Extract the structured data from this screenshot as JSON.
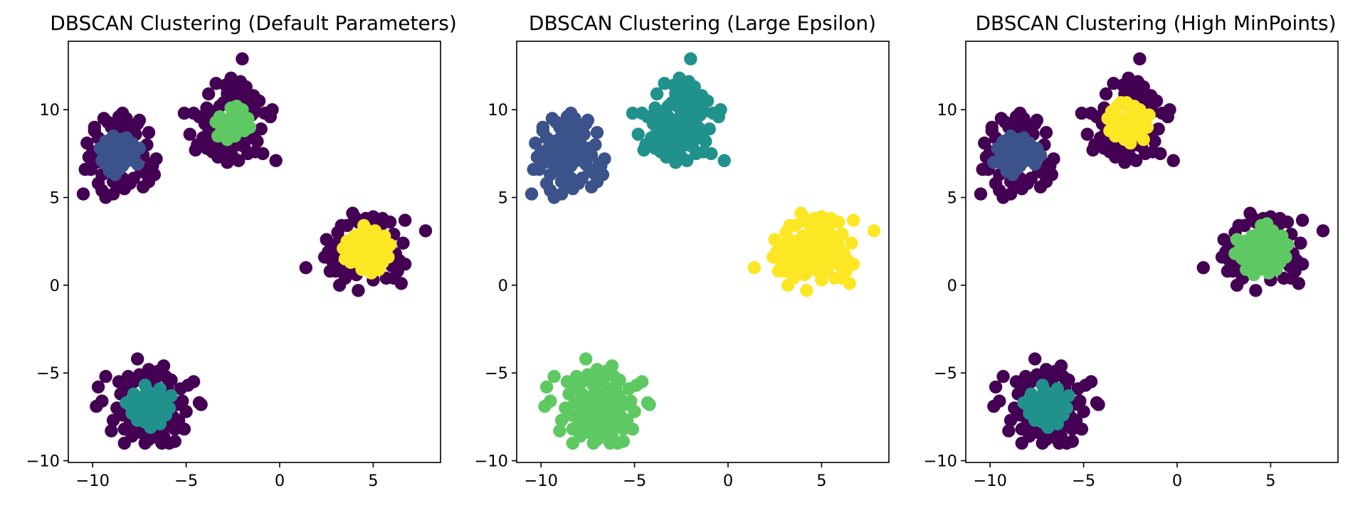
{
  "figure": {
    "background": "#ffffff"
  },
  "palette": {
    "noise": "#440154",
    "c0": "#3b528b",
    "c1": "#21918c",
    "c2": "#5ec962",
    "c3": "#fde725"
  },
  "chart_data": [
    {
      "type": "scatter",
      "title": "DBSCAN Clustering (Default Parameters)",
      "xlabel": "",
      "ylabel": "",
      "xlim": [
        -11.3,
        8.6
      ],
      "ylim": [
        -10.1,
        13.9
      ],
      "xticks": [
        -10,
        -5,
        0,
        5
      ],
      "yticks": [
        -10,
        -5,
        0,
        5,
        10
      ],
      "xtick_labels": [
        "−10",
        "−5",
        "0",
        "5"
      ],
      "ytick_labels": [
        "−10",
        "−5",
        "0",
        "5",
        "10"
      ],
      "grid": false,
      "legend": "none",
      "blob_colors": {
        "A": "c0",
        "B": "c2",
        "C": "c3",
        "D": "c1"
      },
      "clusters": {
        "A": "r1.2",
        "B": "r1.1",
        "C": "r1.4",
        "D": "r1.3"
      }
    },
    {
      "type": "scatter",
      "title": "DBSCAN Clustering (Large Epsilon)",
      "xlabel": "",
      "ylabel": "",
      "xlim": [
        -11.3,
        8.6
      ],
      "ylim": [
        -10.1,
        13.9
      ],
      "xticks": [
        -10,
        -5,
        0,
        5
      ],
      "yticks": [
        -10,
        -5,
        0,
        5,
        10
      ],
      "xtick_labels": [
        "−10",
        "−5",
        "0",
        "5"
      ],
      "ytick_labels": [
        "−10",
        "−5",
        "0",
        "5",
        "10"
      ],
      "grid": false,
      "legend": "none",
      "blob_colors": {
        "A": "c0",
        "B": "c1",
        "C": "c3",
        "D": "c2"
      },
      "clusters": {
        "A": "r99",
        "B": "r99",
        "C": "r99",
        "D": "r99"
      }
    },
    {
      "type": "scatter",
      "title": "DBSCAN Clustering (High MinPoints)",
      "xlabel": "",
      "ylabel": "",
      "xlim": [
        -11.3,
        8.6
      ],
      "ylim": [
        -10.1,
        13.9
      ],
      "xticks": [
        -10,
        -5,
        0,
        5
      ],
      "yticks": [
        -10,
        -5,
        0,
        5,
        10
      ],
      "xtick_labels": [
        "−10",
        "−5",
        "0",
        "5"
      ],
      "ytick_labels": [
        "−10",
        "−5",
        "0",
        "5",
        "10"
      ],
      "grid": false,
      "legend": "none",
      "blob_colors": {
        "A": "c0",
        "B": "c3",
        "C": "c2",
        "D": "c1"
      },
      "clusters": {
        "A": "r1.3",
        "B": "r1.3",
        "C": "r1.6",
        "D": "r1.3"
      }
    }
  ],
  "points": {
    "A": [
      [
        -8.8,
        7.6
      ],
      [
        -8.6,
        7.9
      ],
      [
        -9.1,
        7.3
      ],
      [
        -8.4,
        7.2
      ],
      [
        -8.9,
        8.1
      ],
      [
        -8.2,
        7.7
      ],
      [
        -9.2,
        7.9
      ],
      [
        -8.7,
        7.0
      ],
      [
        -8.5,
        8.3
      ],
      [
        -9.0,
        6.8
      ],
      [
        -8.3,
        8.0
      ],
      [
        -9.4,
        7.5
      ],
      [
        -8.1,
        7.1
      ],
      [
        -8.9,
        8.5
      ],
      [
        -8.6,
        6.6
      ],
      [
        -9.3,
        8.2
      ],
      [
        -8.0,
        7.6
      ],
      [
        -9.5,
        7.1
      ],
      [
        -8.4,
        6.8
      ],
      [
        -8.7,
        8.7
      ],
      [
        -9.1,
        6.5
      ],
      [
        -8.2,
        8.4
      ],
      [
        -9.6,
        7.8
      ],
      [
        -7.8,
        7.3
      ],
      [
        -8.8,
        6.3
      ],
      [
        -9.3,
        6.9
      ],
      [
        -7.9,
        8.1
      ],
      [
        -8.5,
        9.0
      ],
      [
        -9.7,
        8.4
      ],
      [
        -7.6,
        6.9
      ],
      [
        -8.1,
        9.1
      ],
      [
        -9.8,
        7.0
      ],
      [
        -7.5,
        7.8
      ],
      [
        -9.0,
        9.0
      ],
      [
        -8.4,
        6.1
      ],
      [
        -7.7,
        8.6
      ],
      [
        -10.0,
        7.6
      ],
      [
        -9.5,
        6.3
      ],
      [
        -7.3,
        7.4
      ],
      [
        -8.9,
        5.9
      ],
      [
        -8.6,
        9.6
      ],
      [
        -10.3,
        8.1
      ],
      [
        -7.1,
        8.0
      ],
      [
        -9.9,
        8.8
      ],
      [
        -7.4,
        6.5
      ],
      [
        -8.0,
        5.8
      ],
      [
        -9.2,
        9.3
      ],
      [
        -10.1,
        6.6
      ],
      [
        -7.2,
        6.4
      ],
      [
        -6.6,
        7.2
      ],
      [
        -6.8,
        6.8
      ],
      [
        -7.0,
        5.9
      ],
      [
        -9.5,
        5.4
      ],
      [
        -8.3,
        5.5
      ],
      [
        -10.5,
        5.2
      ],
      [
        -9.3,
        5.0
      ],
      [
        -8.4,
        9.8
      ],
      [
        -7.6,
        9.2
      ],
      [
        -9.9,
        9.0
      ],
      [
        -6.9,
        6.9
      ],
      [
        -7.8,
        6.1
      ],
      [
        -10.2,
        7.3
      ],
      [
        -9.4,
        9.5
      ],
      [
        -7.5,
        9.4
      ],
      [
        -8.2,
        9.5
      ],
      [
        -10.4,
        6.6
      ],
      [
        -6.7,
        6.3
      ],
      [
        -8.6,
        5.7
      ],
      [
        -9.7,
        5.8
      ],
      [
        -7.0,
        8.7
      ],
      [
        -8.9,
        5.2
      ],
      [
        -7.3,
        5.6
      ]
    ],
    "B": [
      [
        -2.6,
        9.2
      ],
      [
        -2.4,
        9.5
      ],
      [
        -2.8,
        9.0
      ],
      [
        -2.2,
        8.9
      ],
      [
        -2.5,
        9.8
      ],
      [
        -2.9,
        9.4
      ],
      [
        -2.3,
        9.1
      ],
      [
        -2.7,
        8.7
      ],
      [
        -2.1,
        9.6
      ],
      [
        -3.0,
        9.1
      ],
      [
        -2.4,
        8.5
      ],
      [
        -2.6,
        10.1
      ],
      [
        -3.2,
        9.6
      ],
      [
        -2.0,
        9.2
      ],
      [
        -2.8,
        8.3
      ],
      [
        -2.3,
        10.2
      ],
      [
        -3.1,
        8.8
      ],
      [
        -1.9,
        8.8
      ],
      [
        -3.4,
        9.3
      ],
      [
        -2.5,
        8.1
      ],
      [
        -2.7,
        10.4
      ],
      [
        -2.0,
        10.0
      ],
      [
        -3.3,
        8.5
      ],
      [
        -1.7,
        9.5
      ],
      [
        -3.5,
        9.9
      ],
      [
        -2.2,
        8.0
      ],
      [
        -3.0,
        10.4
      ],
      [
        -1.6,
        9.0
      ],
      [
        -3.6,
        8.8
      ],
      [
        -2.9,
        7.9
      ],
      [
        -2.4,
        10.7
      ],
      [
        -1.8,
        8.3
      ],
      [
        -3.7,
        9.5
      ],
      [
        -3.2,
        10.2
      ],
      [
        -1.5,
        9.7
      ],
      [
        -2.6,
        7.7
      ],
      [
        -3.8,
        8.7
      ],
      [
        -2.1,
        10.6
      ],
      [
        -1.4,
        8.6
      ],
      [
        -3.5,
        8.1
      ],
      [
        -2.8,
        10.9
      ],
      [
        -1.9,
        7.9
      ],
      [
        -4.0,
        9.2
      ],
      [
        -3.1,
        7.6
      ],
      [
        -1.3,
        9.9
      ],
      [
        -2.3,
        11.2
      ],
      [
        -4.1,
        8.4
      ],
      [
        -1.6,
        10.4
      ],
      [
        -3.9,
        10.1
      ],
      [
        -2.5,
        7.3
      ],
      [
        -1.2,
        8.2
      ],
      [
        -3.3,
        7.3
      ],
      [
        -2.0,
        11.0
      ],
      [
        -4.3,
        9.6
      ],
      [
        -1.7,
        7.5
      ],
      [
        -2.9,
        11.4
      ],
      [
        -1.1,
        10.5
      ],
      [
        -4.4,
        8.0
      ],
      [
        -2.2,
        7.1
      ],
      [
        -1.3,
        7.6
      ],
      [
        -3.6,
        7.6
      ],
      [
        -2.6,
        11.8
      ],
      [
        -4.6,
        9.8
      ],
      [
        -2.1,
        11.6
      ],
      [
        -1.4,
        10.8
      ],
      [
        -0.8,
        9.8
      ],
      [
        -0.5,
        9.6
      ],
      [
        -0.4,
        10.0
      ],
      [
        -0.2,
        7.1
      ],
      [
        -5.1,
        9.8
      ],
      [
        -3.8,
        10.9
      ],
      [
        -2.0,
        12.9
      ],
      [
        -4.8,
        8.6
      ],
      [
        -3.4,
        11.5
      ],
      [
        -1.0,
        8.9
      ],
      [
        -1.8,
        11.3
      ],
      [
        -2.8,
        7.0
      ],
      [
        -0.9,
        7.5
      ],
      [
        -3.9,
        7.8
      ],
      [
        -4.5,
        7.7
      ]
    ],
    "C": [
      [
        4.5,
        1.9
      ],
      [
        4.7,
        2.2
      ],
      [
        4.3,
        1.6
      ],
      [
        4.9,
        1.7
      ],
      [
        4.4,
        2.4
      ],
      [
        4.1,
        2.0
      ],
      [
        4.8,
        1.3
      ],
      [
        4.6,
        2.6
      ],
      [
        4.2,
        1.3
      ],
      [
        5.1,
        2.1
      ],
      [
        4.0,
        1.7
      ],
      [
        4.7,
        1.0
      ],
      [
        5.2,
        1.6
      ],
      [
        3.9,
        2.3
      ],
      [
        4.4,
        0.9
      ],
      [
        5.0,
        2.7
      ],
      [
        3.7,
        1.9
      ],
      [
        5.4,
        2.4
      ],
      [
        4.3,
        2.9
      ],
      [
        4.9,
        0.7
      ],
      [
        3.8,
        1.3
      ],
      [
        5.5,
        1.3
      ],
      [
        4.0,
        2.8
      ],
      [
        5.3,
        0.9
      ],
      [
        3.6,
        2.5
      ],
      [
        4.6,
        3.2
      ],
      [
        5.7,
        2.0
      ],
      [
        3.5,
        1.5
      ],
      [
        5.1,
        3.1
      ],
      [
        4.1,
        0.6
      ],
      [
        5.8,
        1.6
      ],
      [
        3.4,
        2.1
      ],
      [
        4.5,
        3.4
      ],
      [
        5.6,
        2.8
      ],
      [
        3.7,
        0.9
      ],
      [
        5.9,
        2.3
      ],
      [
        3.3,
        1.0
      ],
      [
        4.8,
        3.5
      ],
      [
        6.0,
        1.1
      ],
      [
        3.2,
        2.6
      ],
      [
        4.2,
        3.6
      ],
      [
        5.4,
        3.4
      ],
      [
        3.5,
        0.4
      ],
      [
        6.2,
        1.8
      ],
      [
        3.1,
        1.8
      ],
      [
        5.0,
        0.3
      ],
      [
        6.1,
        2.9
      ],
      [
        3.0,
        0.8
      ],
      [
        4.0,
        3.9
      ],
      [
        6.4,
        1.4
      ],
      [
        2.9,
        2.2
      ],
      [
        5.7,
        0.4
      ],
      [
        6.3,
        0.8
      ],
      [
        2.8,
        1.4
      ],
      [
        5.2,
        3.7
      ],
      [
        6.6,
        2.4
      ],
      [
        3.6,
        3.4
      ],
      [
        6.7,
        1.2
      ],
      [
        2.6,
        1.9
      ],
      [
        4.6,
        3.8
      ],
      [
        5.5,
        3.8
      ],
      [
        2.7,
        0.8
      ],
      [
        6.5,
        0.1
      ],
      [
        4.2,
        -0.3
      ],
      [
        3.3,
        3.4
      ],
      [
        3.9,
        4.1
      ],
      [
        5.9,
        3.6
      ],
      [
        3.1,
        3.0
      ],
      [
        6.7,
        3.7
      ],
      [
        7.8,
        3.1
      ],
      [
        1.4,
        1.0
      ],
      [
        2.4,
        1.6
      ],
      [
        6.1,
        0.4
      ],
      [
        3.2,
        0.0
      ],
      [
        5.0,
        3.9
      ],
      [
        2.5,
        2.6
      ]
    ],
    "D": [
      [
        -6.9,
        -7.1
      ],
      [
        -6.7,
        -6.8
      ],
      [
        -7.1,
        -7.4
      ],
      [
        -6.5,
        -7.2
      ],
      [
        -7.0,
        -6.6
      ],
      [
        -6.6,
        -7.6
      ],
      [
        -7.3,
        -6.9
      ],
      [
        -6.3,
        -6.9
      ],
      [
        -7.2,
        -7.8
      ],
      [
        -6.8,
        -6.3
      ],
      [
        -6.4,
        -7.9
      ],
      [
        -7.5,
        -7.2
      ],
      [
        -6.1,
        -7.4
      ],
      [
        -7.4,
        -6.4
      ],
      [
        -6.9,
        -8.1
      ],
      [
        -6.2,
        -6.5
      ],
      [
        -7.7,
        -6.8
      ],
      [
        -6.6,
        -8.3
      ],
      [
        -5.9,
        -7.0
      ],
      [
        -7.6,
        -7.7
      ],
      [
        -7.1,
        -6.0
      ],
      [
        -6.0,
        -8.0
      ],
      [
        -7.9,
        -7.3
      ],
      [
        -6.4,
        -5.9
      ],
      [
        -7.4,
        -8.4
      ],
      [
        -5.7,
        -7.5
      ],
      [
        -7.8,
        -6.2
      ],
      [
        -6.8,
        -8.6
      ],
      [
        -5.8,
        -6.3
      ],
      [
        -8.0,
        -7.9
      ],
      [
        -7.2,
        -5.7
      ],
      [
        -6.2,
        -8.6
      ],
      [
        -5.5,
        -6.8
      ],
      [
        -8.2,
        -6.7
      ],
      [
        -6.7,
        -5.5
      ],
      [
        -7.7,
        -8.3
      ],
      [
        -5.6,
        -8.2
      ],
      [
        -8.1,
        -5.9
      ],
      [
        -7.0,
        -8.8
      ],
      [
        -5.4,
        -7.7
      ],
      [
        -6.9,
        -5.2
      ],
      [
        -8.4,
        -7.4
      ],
      [
        -5.3,
        -5.9
      ],
      [
        -7.9,
        -8.6
      ],
      [
        -6.1,
        -5.2
      ],
      [
        -8.5,
        -6.2
      ],
      [
        -5.2,
        -6.6
      ],
      [
        -7.5,
        -5.1
      ],
      [
        -6.3,
        -9.0
      ],
      [
        -8.3,
        -8.2
      ],
      [
        -5.0,
        -7.2
      ],
      [
        -7.8,
        -5.5
      ],
      [
        -6.5,
        -4.9
      ],
      [
        -5.6,
        -8.9
      ],
      [
        -8.7,
        -7.0
      ],
      [
        -7.2,
        -9.0
      ],
      [
        -4.9,
        -5.7
      ],
      [
        -8.6,
        -5.5
      ],
      [
        -6.2,
        -4.6
      ],
      [
        -5.9,
        -9.0
      ],
      [
        -7.6,
        -4.2
      ],
      [
        -8.9,
        -7.7
      ],
      [
        -4.6,
        -5.5
      ],
      [
        -4.3,
        -6.7
      ],
      [
        -4.2,
        -6.8
      ],
      [
        -8.1,
        -5.2
      ],
      [
        -9.3,
        -5.2
      ],
      [
        -9.7,
        -5.8
      ],
      [
        -9.5,
        -6.6
      ],
      [
        -9.8,
        -6.9
      ],
      [
        -5.8,
        -5.4
      ],
      [
        -6.0,
        -5.8
      ],
      [
        -5.1,
        -8.2
      ],
      [
        -8.3,
        -9.0
      ],
      [
        -9.0,
        -8.3
      ],
      [
        -7.0,
        -4.8
      ],
      [
        -6.4,
        -8.8
      ]
    ]
  }
}
